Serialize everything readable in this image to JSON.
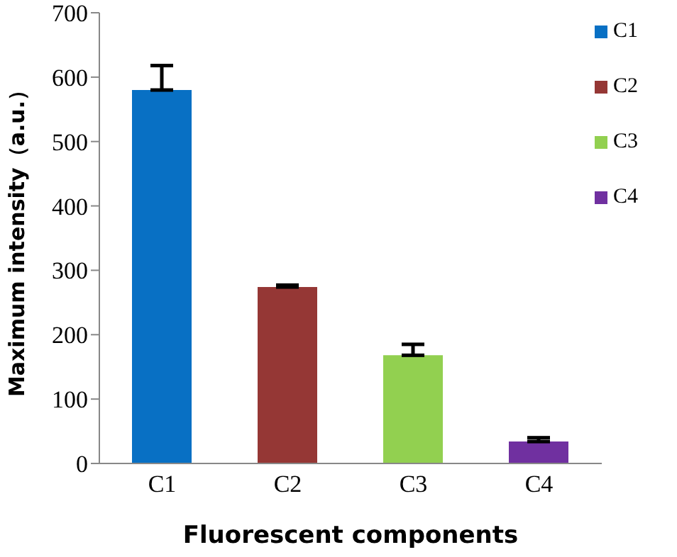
{
  "chart_data": {
    "type": "bar",
    "xlabel": "Fluorescent components",
    "ylabel": "Maximum intensity（a.u.）",
    "categories": [
      "C1",
      "C2",
      "C3",
      "C4"
    ],
    "stacked": true,
    "series": [
      {
        "name": "C1",
        "color": "#0870c4",
        "values": [
          580,
          null,
          null,
          null
        ],
        "errors": [
          [
            580,
            618
          ],
          null,
          null,
          null
        ]
      },
      {
        "name": "C2",
        "color": "#953735",
        "values": [
          null,
          274,
          null,
          null
        ],
        "errors": [
          null,
          [
            274,
            277
          ],
          null,
          null
        ]
      },
      {
        "name": "C3",
        "color": "#92d050",
        "values": [
          null,
          null,
          168,
          null
        ],
        "errors": [
          null,
          null,
          [
            168,
            185
          ],
          null
        ]
      },
      {
        "name": "C4",
        "color": "#7030a0",
        "values": [
          null,
          null,
          null,
          34
        ],
        "errors": [
          null,
          null,
          null,
          [
            34,
            40
          ]
        ]
      }
    ],
    "ylim": [
      0,
      700
    ],
    "yticks": [
      0,
      100,
      200,
      300,
      400,
      500,
      600,
      700
    ],
    "legend": "top right"
  }
}
